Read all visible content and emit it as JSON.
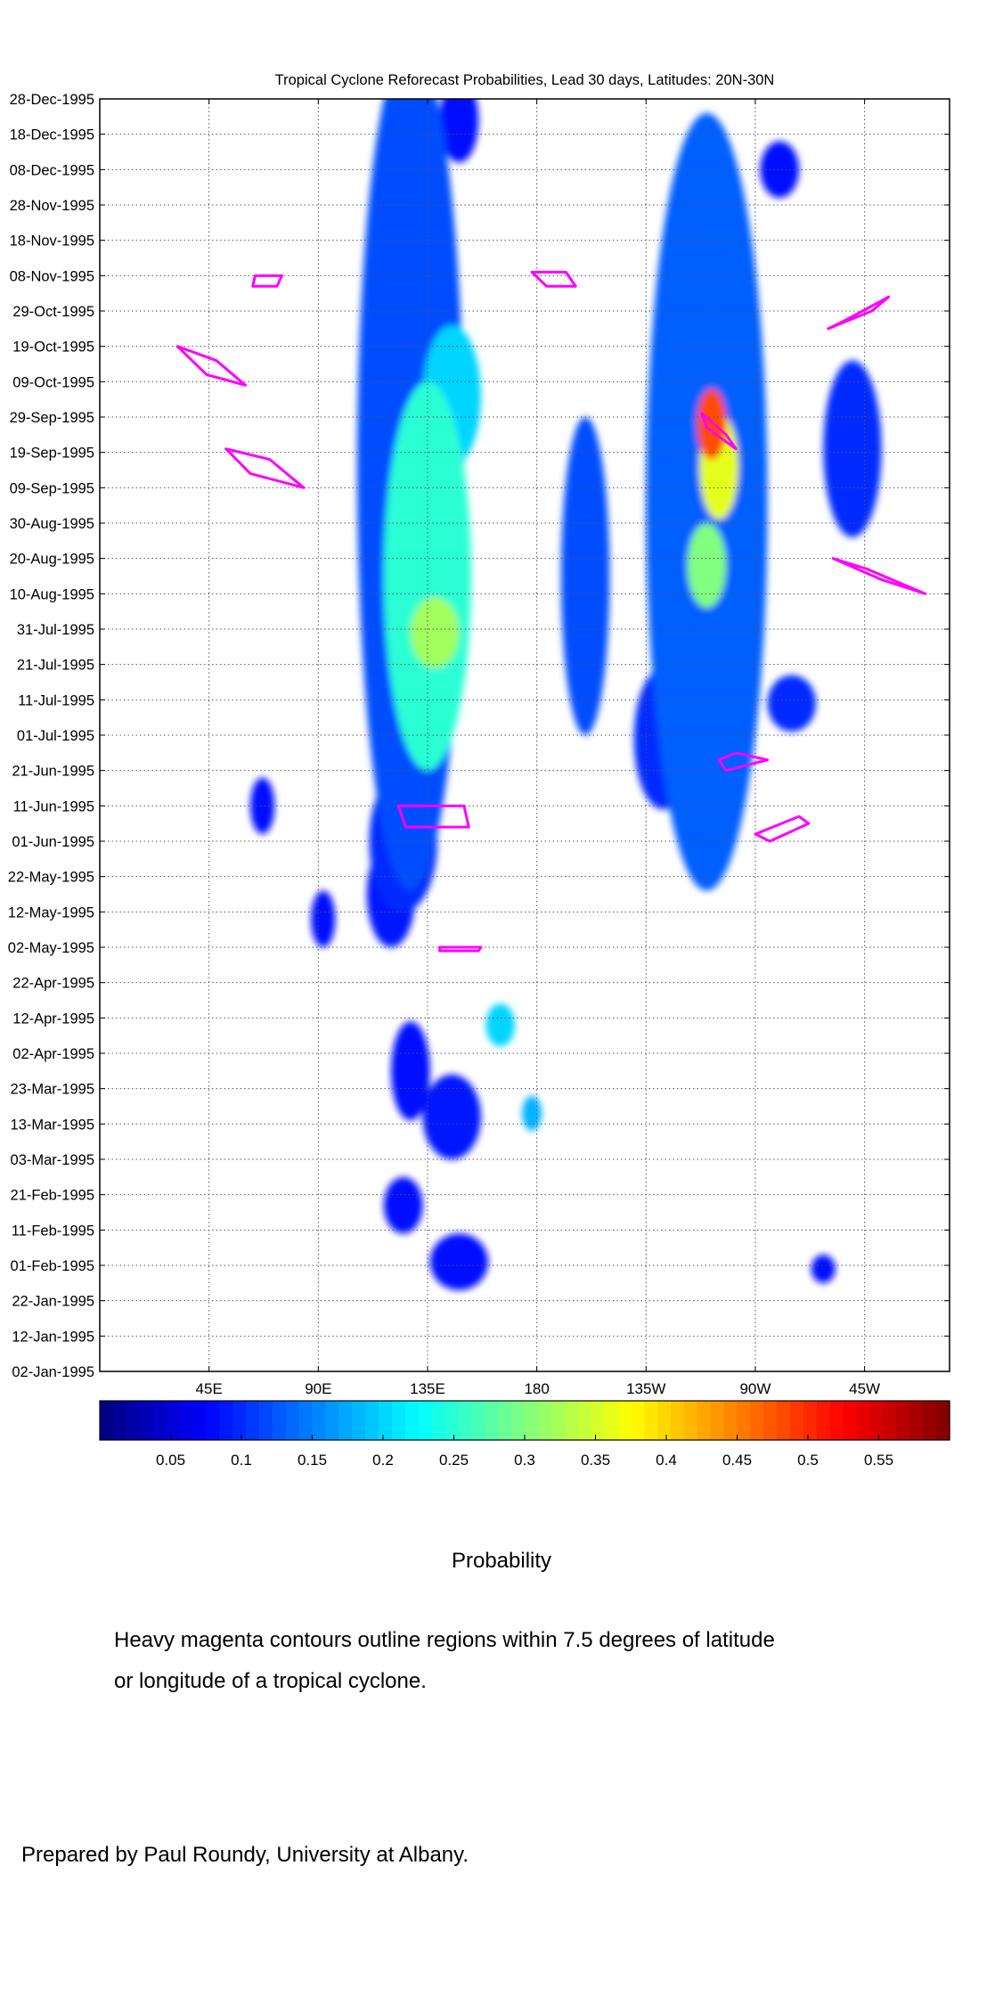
{
  "chart_data": {
    "type": "heatmap",
    "title": "Tropical Cyclone Reforecast Probabilities, Lead 30 days, Latitudes: 20N-30N",
    "x_axis": {
      "quantity": "longitude",
      "range": [
        "0E",
        "350E"
      ],
      "tick_labels": [
        "45E",
        "90E",
        "135E",
        "180",
        "135W",
        "90W",
        "45W"
      ],
      "tick_values_deg_east": [
        45,
        90,
        135,
        180,
        225,
        270,
        315
      ]
    },
    "y_axis": {
      "quantity": "date",
      "range": [
        "1995-01-02",
        "1995-12-28"
      ],
      "tick_labels": [
        "28-Dec-1995",
        "18-Dec-1995",
        "08-Dec-1995",
        "28-Nov-1995",
        "18-Nov-1995",
        "08-Nov-1995",
        "29-Oct-1995",
        "19-Oct-1995",
        "09-Oct-1995",
        "29-Sep-1995",
        "19-Sep-1995",
        "09-Sep-1995",
        "30-Aug-1995",
        "20-Aug-1995",
        "10-Aug-1995",
        "31-Jul-1995",
        "21-Jul-1995",
        "11-Jul-1995",
        "01-Jul-1995",
        "21-Jun-1995",
        "11-Jun-1995",
        "01-Jun-1995",
        "22-May-1995",
        "12-May-1995",
        "02-May-1995",
        "22-Apr-1995",
        "12-Apr-1995",
        "02-Apr-1995",
        "23-Mar-1995",
        "13-Mar-1995",
        "03-Mar-1995",
        "21-Feb-1995",
        "11-Feb-1995",
        "01-Feb-1995",
        "22-Jan-1995",
        "12-Jan-1995",
        "02-Jan-1995"
      ],
      "inverted": true
    },
    "grid": "dotted",
    "colorbar": {
      "label": "Probability",
      "range": [
        0,
        0.6
      ],
      "tick_labels": [
        "0.05",
        "0.1",
        "0.15",
        "0.2",
        "0.25",
        "0.3",
        "0.35",
        "0.4",
        "0.45",
        "0.5",
        "0.55"
      ],
      "tick_values": [
        0.05,
        0.1,
        0.15,
        0.2,
        0.25,
        0.3,
        0.35,
        0.4,
        0.45,
        0.5,
        0.55
      ],
      "colormap": "jet"
    },
    "probability_blobs": [
      {
        "lon": 128,
        "date": "1995-09-15",
        "dlon": 22,
        "ddays": 120,
        "p": 0.12
      },
      {
        "lon": 135,
        "date": "1995-08-15",
        "dlon": 18,
        "ddays": 55,
        "p": 0.25
      },
      {
        "lon": 138,
        "date": "1995-07-30",
        "dlon": 10,
        "ddays": 10,
        "p": 0.32
      },
      {
        "lon": 145,
        "date": "1995-10-05",
        "dlon": 12,
        "ddays": 20,
        "p": 0.2
      },
      {
        "lon": 250,
        "date": "1995-09-05",
        "dlon": 25,
        "ddays": 110,
        "p": 0.13
      },
      {
        "lon": 252,
        "date": "1995-09-27",
        "dlon": 6,
        "ddays": 10,
        "p": 0.48
      },
      {
        "lon": 255,
        "date": "1995-09-15",
        "dlon": 8,
        "ddays": 15,
        "p": 0.36
      },
      {
        "lon": 250,
        "date": "1995-08-18",
        "dlon": 8,
        "ddays": 12,
        "p": 0.3
      },
      {
        "lon": 200,
        "date": "1995-08-15",
        "dlon": 10,
        "ddays": 45,
        "p": 0.12
      },
      {
        "lon": 125,
        "date": "1995-06-01",
        "dlon": 14,
        "ddays": 20,
        "p": 0.1
      },
      {
        "lon": 120,
        "date": "1995-05-17",
        "dlon": 10,
        "ddays": 15,
        "p": 0.09
      },
      {
        "lon": 128,
        "date": "1995-03-28",
        "dlon": 8,
        "ddays": 14,
        "p": 0.08
      },
      {
        "lon": 145,
        "date": "1995-03-15",
        "dlon": 12,
        "ddays": 12,
        "p": 0.09
      },
      {
        "lon": 165,
        "date": "1995-04-10",
        "dlon": 6,
        "ddays": 6,
        "p": 0.2
      },
      {
        "lon": 178,
        "date": "1995-03-16",
        "dlon": 4,
        "ddays": 5,
        "p": 0.18
      },
      {
        "lon": 125,
        "date": "1995-02-18",
        "dlon": 8,
        "ddays": 8,
        "p": 0.08
      },
      {
        "lon": 148,
        "date": "1995-02-02",
        "dlon": 12,
        "ddays": 8,
        "p": 0.08
      },
      {
        "lon": 67,
        "date": "1995-06-11",
        "dlon": 5,
        "ddays": 8,
        "p": 0.08
      },
      {
        "lon": 92,
        "date": "1995-05-10",
        "dlon": 5,
        "ddays": 8,
        "p": 0.08
      },
      {
        "lon": 280,
        "date": "1995-12-08",
        "dlon": 8,
        "ddays": 8,
        "p": 0.08
      },
      {
        "lon": 148,
        "date": "1995-12-22",
        "dlon": 8,
        "ddays": 12,
        "p": 0.08
      },
      {
        "lon": 130,
        "date": "1995-11-28",
        "dlon": 12,
        "ddays": 10,
        "p": 0.08
      },
      {
        "lon": 285,
        "date": "1995-07-10",
        "dlon": 10,
        "ddays": 8,
        "p": 0.1
      },
      {
        "lon": 232,
        "date": "1995-06-30",
        "dlon": 12,
        "ddays": 20,
        "p": 0.1
      },
      {
        "lon": 298,
        "date": "1995-01-31",
        "dlon": 5,
        "ddays": 4,
        "p": 0.08
      },
      {
        "lon": 310,
        "date": "1995-09-20",
        "dlon": 12,
        "ddays": 25,
        "p": 0.1
      }
    ],
    "cyclone_contours": {
      "color": "#ff00ff",
      "polygons": [
        [
          [
            32,
            "1995-10-19"
          ],
          [
            48,
            "1995-10-15"
          ],
          [
            60,
            "1995-10-08"
          ],
          [
            44,
            "1995-10-11"
          ]
        ],
        [
          [
            52,
            "1995-09-20"
          ],
          [
            70,
            "1995-09-17"
          ],
          [
            84,
            "1995-09-09"
          ],
          [
            62,
            "1995-09-13"
          ]
        ],
        [
          [
            64,
            "1995-11-08"
          ],
          [
            75,
            "1995-11-08"
          ],
          [
            73,
            "1995-11-05"
          ],
          [
            63,
            "1995-11-05"
          ]
        ],
        [
          [
            248,
            "1995-09-30"
          ],
          [
            258,
            "1995-09-24"
          ],
          [
            262,
            "1995-09-20"
          ],
          [
            250,
            "1995-09-26"
          ]
        ],
        [
          [
            300,
            "1995-10-24"
          ],
          [
            318,
            "1995-10-29"
          ],
          [
            325,
            "1995-11-02"
          ],
          [
            306,
            "1995-10-26"
          ]
        ],
        [
          [
            302,
            "1995-08-20"
          ],
          [
            322,
            "1995-08-14"
          ],
          [
            340,
            "1995-08-10"
          ],
          [
            316,
            "1995-08-17"
          ]
        ],
        [
          [
            255,
            "1995-06-24"
          ],
          [
            258,
            "1995-06-21"
          ],
          [
            275,
            "1995-06-24"
          ],
          [
            262,
            "1995-06-26"
          ]
        ],
        [
          [
            270,
            "1995-06-03"
          ],
          [
            288,
            "1995-06-08"
          ],
          [
            292,
            "1995-06-06"
          ],
          [
            276,
            "1995-06-01"
          ]
        ],
        [
          [
            178,
            "1995-11-09"
          ],
          [
            192,
            "1995-11-09"
          ],
          [
            196,
            "1995-11-05"
          ],
          [
            184,
            "1995-11-05"
          ]
        ],
        [
          [
            123,
            "1995-06-11"
          ],
          [
            150,
            "1995-06-11"
          ],
          [
            152,
            "1995-06-05"
          ],
          [
            126,
            "1995-06-05"
          ]
        ],
        [
          [
            140,
            "1995-05-02"
          ],
          [
            157,
            "1995-05-02"
          ],
          [
            156,
            "1995-05-01"
          ],
          [
            140,
            "1995-05-01"
          ]
        ]
      ]
    }
  },
  "colorbar_label": "Probability",
  "caption_line1": "Heavy magenta contours outline regions within 7.5 degrees of latitude",
  "caption_line2": "or longitude of a tropical cyclone.",
  "credit": "Prepared by Paul Roundy, University at Albany."
}
